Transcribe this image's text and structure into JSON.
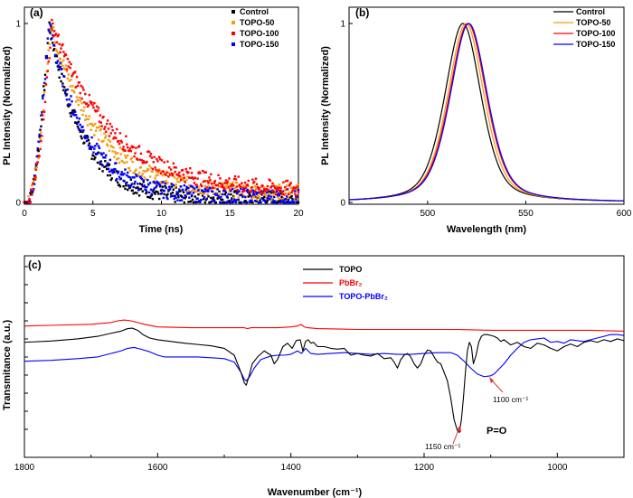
{
  "chart_data": [
    {
      "panel_label": "(a)",
      "type": "scatter",
      "xlabel": "Time (ns)",
      "ylabel": "PL Intensity (Normalized)",
      "xlim": [
        0,
        20
      ],
      "ylim": [
        0,
        1
      ],
      "xticks": [
        0,
        5,
        10,
        15,
        20
      ],
      "yticks": [
        0,
        1
      ],
      "legend_position": "top-right",
      "series": [
        {
          "name": "Control",
          "color": "#000000",
          "peak_time": 1.8,
          "tau": 2.4,
          "floor": 0.02
        },
        {
          "name": "TOPO-50",
          "color": "#f39c12",
          "peak_time": 1.9,
          "tau": 3.4,
          "floor": 0.05
        },
        {
          "name": "TOPO-100",
          "color": "#ff0000",
          "peak_time": 2.0,
          "tau": 4.3,
          "floor": 0.06
        },
        {
          "name": "TOPO-150",
          "color": "#0000ff",
          "peak_time": 1.8,
          "tau": 2.6,
          "floor": 0.03
        }
      ]
    },
    {
      "panel_label": "(b)",
      "type": "line",
      "xlabel": "Wavelength (nm)",
      "ylabel": "PL Intensity (Normalized)",
      "xlim": [
        460,
        600
      ],
      "ylim": [
        0,
        1
      ],
      "xticks": [
        500,
        550,
        600
      ],
      "yticks": [
        0,
        1
      ],
      "legend_position": "top-right",
      "series": [
        {
          "name": "Control",
          "color": "#000000",
          "peak_nm": 518,
          "fwhm_nm": 22
        },
        {
          "name": "TOPO-50",
          "color": "#f39c12",
          "peak_nm": 519.5,
          "fwhm_nm": 22
        },
        {
          "name": "TOPO-100",
          "color": "#ff0000",
          "peak_nm": 520.5,
          "fwhm_nm": 22.5
        },
        {
          "name": "TOPO-150",
          "color": "#0000ff",
          "peak_nm": 521,
          "fwhm_nm": 22.5
        }
      ]
    },
    {
      "panel_label": "(c)",
      "type": "line",
      "xlabel": "Wavenumber (cm⁻¹)",
      "ylabel": "Transmitance (a.u.)",
      "xlim": [
        1800,
        900
      ],
      "xticks": [
        1800,
        1600,
        1400,
        1200,
        1000
      ],
      "legend_position": "top-center",
      "series": [
        {
          "name": "TOPO",
          "color": "#000000",
          "x": [
            1800,
            1760,
            1720,
            1690,
            1670,
            1655,
            1645,
            1638,
            1630,
            1622,
            1612,
            1600,
            1580,
            1560,
            1540,
            1520,
            1500,
            1485,
            1475,
            1470,
            1467,
            1463,
            1458,
            1450,
            1440,
            1430,
            1425,
            1420,
            1412,
            1405,
            1398,
            1392,
            1386,
            1382,
            1378,
            1374,
            1370,
            1366,
            1360,
            1350,
            1340,
            1330,
            1320,
            1310,
            1300,
            1290,
            1280,
            1270,
            1260,
            1250,
            1245,
            1240,
            1235,
            1230,
            1225,
            1220,
            1215,
            1210,
            1205,
            1200,
            1195,
            1190,
            1185,
            1180,
            1175,
            1170,
            1165,
            1160,
            1155,
            1150,
            1147,
            1144,
            1141,
            1138,
            1135,
            1132,
            1129,
            1126,
            1122,
            1118,
            1114,
            1110,
            1105,
            1100,
            1095,
            1090,
            1085,
            1080,
            1070,
            1060,
            1050,
            1040,
            1030,
            1020,
            1010,
            1000,
            990,
            980,
            970,
            960,
            950,
            940,
            930,
            920,
            910,
            900
          ],
          "y": [
            -0.05,
            -0.035,
            -0.01,
            0.02,
            0.055,
            0.08,
            0.11,
            0.115,
            0.09,
            0.04,
            0.0,
            -0.02,
            -0.04,
            -0.06,
            -0.075,
            -0.09,
            -0.12,
            -0.2,
            -0.4,
            -0.52,
            -0.55,
            -0.45,
            -0.3,
            -0.22,
            -0.15,
            -0.2,
            -0.3,
            -0.25,
            -0.1,
            -0.06,
            -0.12,
            -0.03,
            -0.02,
            -0.15,
            -0.04,
            -0.02,
            -0.06,
            -0.05,
            -0.1,
            -0.1,
            -0.12,
            -0.13,
            -0.12,
            -0.2,
            -0.18,
            -0.2,
            -0.21,
            -0.18,
            -0.24,
            -0.23,
            -0.28,
            -0.35,
            -0.25,
            -0.2,
            -0.18,
            -0.22,
            -0.3,
            -0.35,
            -0.3,
            -0.2,
            -0.14,
            -0.15,
            -0.22,
            -0.28,
            -0.3,
            -0.4,
            -0.5,
            -0.7,
            -0.95,
            -1.08,
            -1.1,
            -0.95,
            -0.7,
            -0.4,
            -0.15,
            -0.05,
            -0.1,
            -0.3,
            -0.2,
            -0.05,
            0.02,
            0.04,
            0.04,
            0.03,
            0.02,
            0.0,
            -0.04,
            -0.02,
            -0.08,
            -0.05,
            -0.1,
            -0.12,
            -0.06,
            -0.08,
            -0.12,
            -0.15,
            -0.1,
            -0.07,
            -0.1,
            -0.05,
            -0.03,
            -0.05,
            -0.02,
            -0.04,
            -0.01,
            -0.03
          ]
        },
        {
          "name": "PbBr₂",
          "color": "#ff0000",
          "x": [
            1800,
            1750,
            1700,
            1670,
            1660,
            1650,
            1640,
            1630,
            1620,
            1600,
            1550,
            1500,
            1470,
            1465,
            1460,
            1420,
            1400,
            1390,
            1385,
            1380,
            1375,
            1360,
            1300,
            1250,
            1200,
            1150,
            1100,
            1050,
            1000,
            950,
            900
          ],
          "y": [
            0.14,
            0.15,
            0.16,
            0.18,
            0.2,
            0.21,
            0.2,
            0.18,
            0.16,
            0.13,
            0.12,
            0.12,
            0.12,
            0.11,
            0.12,
            0.12,
            0.13,
            0.14,
            0.16,
            0.13,
            0.12,
            0.11,
            0.1,
            0.1,
            0.1,
            0.1,
            0.09,
            0.09,
            0.09,
            0.09,
            0.08
          ]
        },
        {
          "name": "TOPO-PbBr₂",
          "color": "#0000ff",
          "x": [
            1800,
            1760,
            1720,
            1690,
            1670,
            1655,
            1645,
            1635,
            1625,
            1612,
            1600,
            1590,
            1570,
            1540,
            1520,
            1500,
            1485,
            1475,
            1470,
            1467,
            1462,
            1455,
            1445,
            1430,
            1420,
            1410,
            1400,
            1390,
            1384,
            1378,
            1370,
            1360,
            1340,
            1320,
            1300,
            1280,
            1260,
            1240,
            1220,
            1200,
            1180,
            1160,
            1150,
            1140,
            1130,
            1120,
            1110,
            1100,
            1095,
            1090,
            1080,
            1070,
            1060,
            1050,
            1040,
            1030,
            1020,
            1010,
            1000,
            990,
            980,
            960,
            950,
            940,
            930,
            920,
            910,
            900
          ],
          "y": [
            -0.27,
            -0.26,
            -0.24,
            -0.22,
            -0.18,
            -0.15,
            -0.12,
            -0.11,
            -0.13,
            -0.16,
            -0.2,
            -0.22,
            -0.22,
            -0.22,
            -0.23,
            -0.24,
            -0.28,
            -0.4,
            -0.48,
            -0.5,
            -0.45,
            -0.35,
            -0.25,
            -0.21,
            -0.2,
            -0.2,
            -0.19,
            -0.15,
            -0.18,
            -0.12,
            -0.18,
            -0.19,
            -0.18,
            -0.17,
            -0.18,
            -0.19,
            -0.18,
            -0.19,
            -0.19,
            -0.18,
            -0.17,
            -0.17,
            -0.2,
            -0.27,
            -0.35,
            -0.42,
            -0.45,
            -0.44,
            -0.42,
            -0.38,
            -0.3,
            -0.2,
            -0.12,
            -0.05,
            -0.02,
            -0.01,
            0.0,
            -0.05,
            -0.04,
            -0.06,
            -0.02,
            -0.04,
            -0.02,
            0.0,
            0.02,
            0.04,
            0.04,
            0.03
          ]
        }
      ],
      "annotations": [
        {
          "text": "1150 cm⁻¹"
        },
        {
          "text": "1100 cm⁻¹"
        },
        {
          "text": "P=O"
        }
      ]
    }
  ]
}
